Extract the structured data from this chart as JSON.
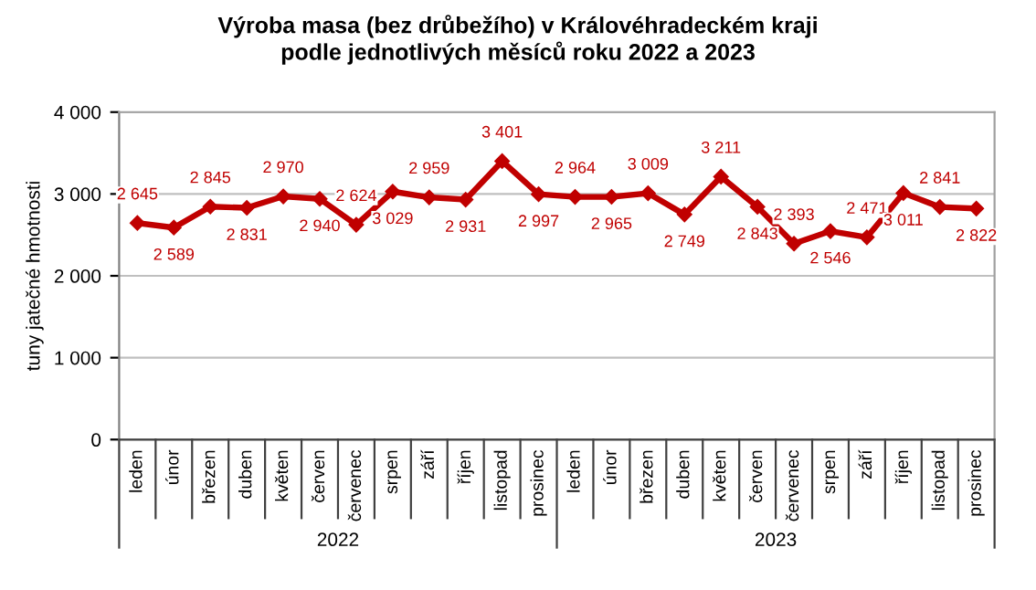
{
  "chart_data": {
    "type": "line",
    "title": "Výroba masa (bez drůbežího) v Královéhradeckém kraji\npodle jednotlivých měsíců roku 2022 a 2023",
    "ylabel": "tuny jatečné hmotnosti",
    "categories": [
      "leden",
      "únor",
      "březen",
      "duben",
      "květen",
      "červen",
      "červenec",
      "srpen",
      "září",
      "říjen",
      "listopad",
      "prosinec",
      "leden",
      "únor",
      "březen",
      "duben",
      "květen",
      "červen",
      "červenec",
      "srpen",
      "září",
      "říjen",
      "listopad",
      "prosinec"
    ],
    "series": [
      {
        "color": "#c00000",
        "values": [
          2645,
          2589,
          2845,
          2831,
          2970,
          2940,
          2624,
          3029,
          2959,
          2931,
          3401,
          2997,
          2964,
          2965,
          3009,
          2749,
          3211,
          2843,
          2393,
          2546,
          2471,
          3011,
          2841,
          2822
        ],
        "value_labels": [
          "2 645",
          "2 589",
          "2 845",
          "2 831",
          "2 970",
          "2 940",
          "2 624",
          "3 029",
          "2 959",
          "2 931",
          "3 401",
          "2 997",
          "2 964",
          "2 965",
          "3 009",
          "2 749",
          "3 211",
          "2 843",
          "2 393",
          "2 546",
          "2 471",
          "3 011",
          "2 841",
          "2 822"
        ]
      }
    ],
    "annotations": [
      "2022",
      "2023"
    ],
    "ylim": [
      0,
      4000
    ],
    "yticks": [
      {
        "value": 0,
        "label": "0"
      },
      {
        "value": 1000,
        "label": "1 000"
      },
      {
        "value": 2000,
        "label": "2 000"
      },
      {
        "value": 3000,
        "label": "3 000"
      },
      {
        "value": 4000,
        "label": "4 000"
      }
    ],
    "grid": "y",
    "legend": false,
    "marker": "diamond",
    "line_style": "solid"
  }
}
